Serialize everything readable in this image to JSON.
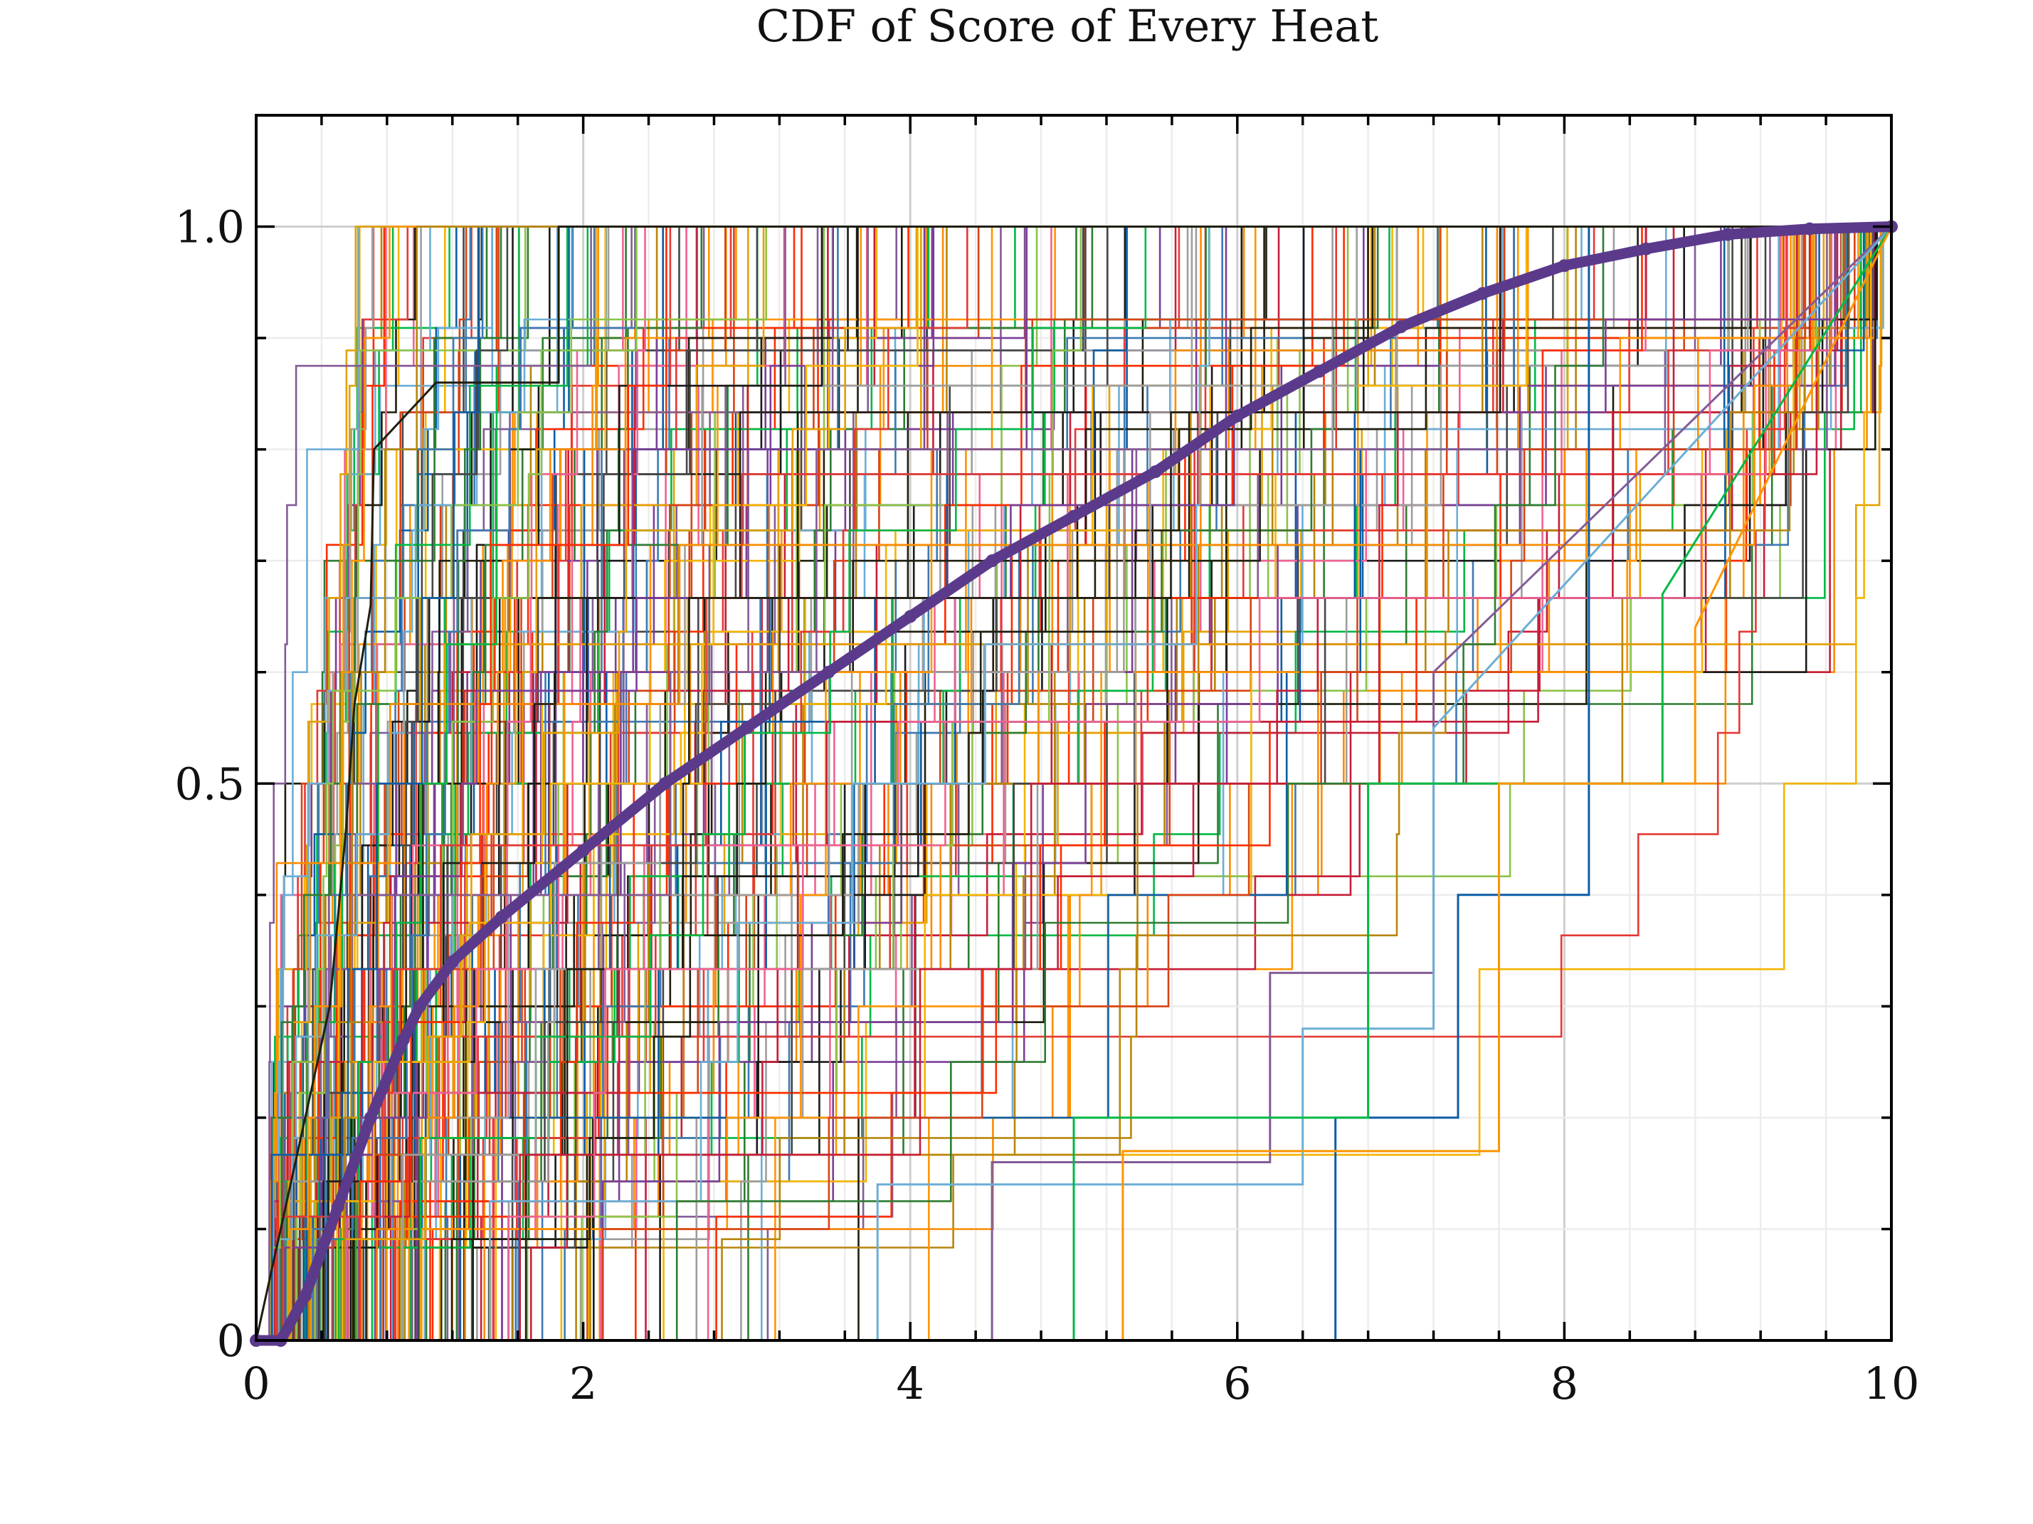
{
  "chart_data": {
    "type": "line",
    "title": "CDF of Score of Every Heat",
    "xlabel": "",
    "ylabel": "",
    "xlim": [
      0,
      10
    ],
    "ylim": [
      0,
      1.1
    ],
    "x_ticks": [
      0,
      2,
      4,
      6,
      8,
      10
    ],
    "x_tick_labels": [
      "0",
      "2",
      "4",
      "6",
      "8",
      "10"
    ],
    "y_ticks": [
      0,
      0.5,
      1.0
    ],
    "y_tick_labels": [
      "0",
      "0.5",
      "1.0"
    ],
    "grid": true,
    "legend": "none",
    "step_series_count_estimate": 300,
    "step_series_colors": [
      "#0c5da5",
      "#00b945",
      "#ff9500",
      "#ff2c00",
      "#845b97",
      "#474747",
      "#9e9e9e",
      "#1f1f0f",
      "#e6a100",
      "#b8860b",
      "#c71e3a",
      "#f06292",
      "#6baed6",
      "#2e7d32",
      "#fb8c00",
      "#d84315",
      "#7b3f99",
      "#1b1b1b",
      "#f4b400",
      "#e53935",
      "#3d7ab3",
      "#8bc34a"
    ],
    "highlighted_steps": [
      {
        "color": "#0c5da5",
        "x": [
          0,
          6.6,
          6.6,
          7.35,
          7.35,
          8.15,
          8.15,
          10
        ],
        "y": [
          0,
          0,
          0.2,
          0.2,
          0.4,
          0.4,
          1.0,
          1.0
        ]
      },
      {
        "color": "#1f1f0f",
        "x": [
          0,
          0.45,
          0.55,
          0.6,
          0.7,
          0.72,
          1.1,
          1.85,
          1.85,
          10
        ],
        "y": [
          0,
          0.3,
          0.46,
          0.57,
          0.66,
          0.8,
          0.86,
          0.86,
          1.0,
          1.0
        ]
      },
      {
        "color": "#845b97",
        "x": [
          0,
          4.5,
          4.5,
          6.2,
          6.2,
          6.4,
          6.4,
          7.2,
          7.2,
          10
        ],
        "y": [
          0,
          0,
          0.16,
          0.16,
          0.33,
          0.33,
          0.33,
          0.33,
          0.6,
          1.0
        ]
      },
      {
        "color": "#6baed6",
        "x": [
          0,
          3.8,
          3.8,
          6.4,
          6.4,
          7.2,
          7.2,
          10
        ],
        "y": [
          0,
          0,
          0.14,
          0.14,
          0.28,
          0.28,
          0.55,
          1.0
        ]
      },
      {
        "color": "#00b945",
        "x": [
          0,
          5.0,
          5.0,
          6.8,
          6.8,
          8.6,
          8.6,
          10
        ],
        "y": [
          0,
          0,
          0.2,
          0.2,
          0.5,
          0.5,
          0.67,
          1.0
        ]
      },
      {
        "color": "#ff9500",
        "x": [
          0,
          5.3,
          5.3,
          7.6,
          7.6,
          8.8,
          8.8,
          10
        ],
        "y": [
          0,
          0,
          0.17,
          0.17,
          0.5,
          0.5,
          0.64,
          1.0
        ]
      }
    ],
    "mean_cdf": {
      "name": "",
      "color": "#5b3a8c",
      "x": [
        0,
        0.15,
        0.3,
        0.5,
        0.7,
        0.9,
        1.0,
        1.2,
        1.5,
        2.0,
        2.5,
        3.0,
        3.5,
        4.0,
        4.5,
        5.0,
        5.5,
        6.0,
        6.5,
        7.0,
        7.5,
        8.0,
        8.5,
        9.0,
        9.5,
        10.0
      ],
      "y": [
        0,
        0.0,
        0.04,
        0.12,
        0.2,
        0.27,
        0.3,
        0.34,
        0.38,
        0.44,
        0.5,
        0.55,
        0.6,
        0.65,
        0.7,
        0.74,
        0.78,
        0.83,
        0.87,
        0.91,
        0.94,
        0.965,
        0.98,
        0.993,
        0.998,
        1.0
      ]
    }
  }
}
